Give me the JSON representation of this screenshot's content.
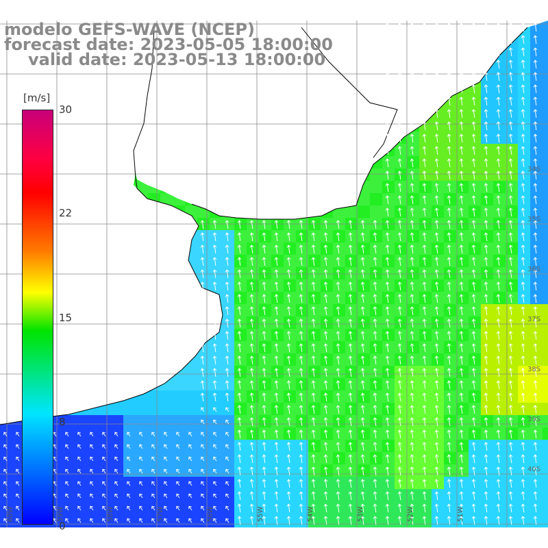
{
  "header": {
    "model": "modelo GEFS-WAVE (NCEP)",
    "forecast": "forecast date: 2023-05-05 18:00:00",
    "valid": "valid date: 2023-05-13 18:00:00"
  },
  "colorbar": {
    "unit": "[m/s]",
    "ticks": [
      "30",
      "22",
      "15",
      "8",
      "0"
    ],
    "colors": [
      "#0000ff",
      "#00e5ff",
      "#00e400",
      "#ffff00",
      "#ff7a00",
      "#ff0000",
      "#c8007a"
    ]
  },
  "map": {
    "lon_labels": [
      "60W",
      "59W",
      "58W",
      "57W",
      "56W",
      "55W",
      "54W",
      "53W",
      "52W",
      "51W"
    ],
    "lat_labels": [
      "34S",
      "35S",
      "36S",
      "37S",
      "38S",
      "39S",
      "40S"
    ],
    "field": "wind speed",
    "land_color": "#ffffff",
    "grid_color": "#888888"
  }
}
